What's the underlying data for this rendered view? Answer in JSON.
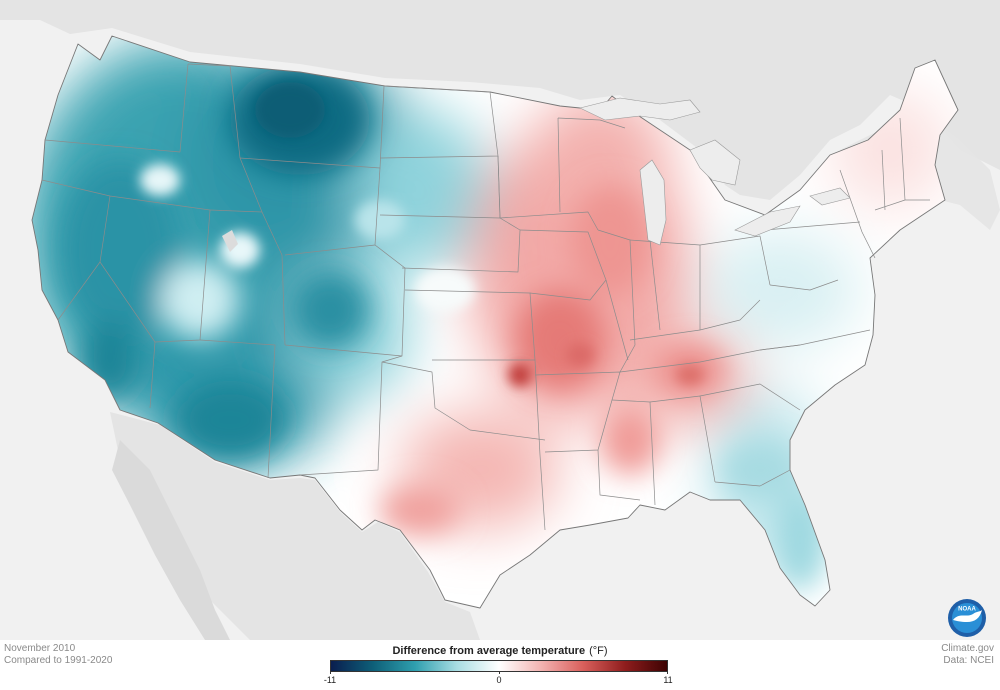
{
  "map": {
    "subject": "Difference from average temperature, contiguous United States",
    "colors": {
      "background": "#f1f1f1",
      "neighbor_land": "#e4e4e4",
      "state_border": "#8c8c8c",
      "cold_max": "#0b5f75",
      "cold_mid": "#3fa8b5",
      "neutral": "#ffffff",
      "warm_mid": "#ee8e8c",
      "warm_max": "#8f1d1d"
    }
  },
  "footer": {
    "period": "November 2010",
    "baseline": "Compared to 1991-2020",
    "credit": "Climate.gov",
    "source": "Data: NCEI"
  },
  "legend": {
    "title": "Difference from average temperature",
    "unit": "(°F)",
    "min_label": "-11",
    "mid_label": "0",
    "max_label": "11",
    "range": [
      -11,
      11
    ],
    "gradient": [
      "#0a1e4f",
      "#0e5f78",
      "#2f9fae",
      "#a9dde3",
      "#ffffff",
      "#f3b3b1",
      "#d9605c",
      "#8f1d1d",
      "#3d0303"
    ]
  },
  "logo": {
    "text": "NOAA",
    "colors": {
      "outer": "#1f5fa8",
      "inner": "#2a8fd6",
      "bird": "#ffffff"
    }
  }
}
